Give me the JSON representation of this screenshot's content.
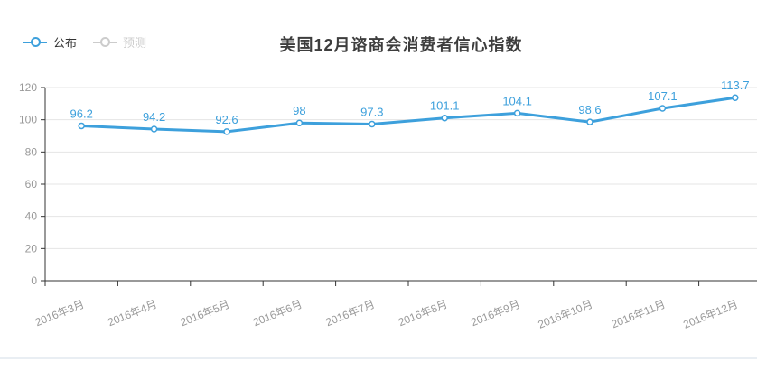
{
  "page": {
    "background": "#ffffff"
  },
  "legend": {
    "items": [
      {
        "label": "公布",
        "color": "#3da0dc",
        "label_color": "#333333",
        "active": true
      },
      {
        "label": "预测",
        "color": "#cccccc",
        "label_color": "#cccccc",
        "active": false
      }
    ]
  },
  "chart_data": {
    "type": "line",
    "title": "美国12月谘商会消费者信心指数",
    "categories": [
      "2016年3月",
      "2016年4月",
      "2016年5月",
      "2016年6月",
      "2016年7月",
      "2016年8月",
      "2016年9月",
      "2016年10月",
      "2016年11月",
      "2016年12月"
    ],
    "series": [
      {
        "name": "公布",
        "values": [
          96.2,
          94.2,
          92.6,
          98,
          97.3,
          101.1,
          104.1,
          98.6,
          107.1,
          113.7
        ],
        "color": "#3da0dc",
        "visible": true
      },
      {
        "name": "预测",
        "values": [],
        "color": "#cccccc",
        "visible": false
      }
    ],
    "xlabel": "",
    "ylabel": "",
    "ylim": [
      0,
      120
    ],
    "y_ticks": [
      0,
      20,
      40,
      60,
      80,
      100,
      120
    ],
    "grid": true,
    "legend_position": "top-left",
    "data_labels_shown": true
  },
  "colors": {
    "line": "#3da0dc",
    "axis": "#333333",
    "grid": "#e4e4e4",
    "tick_label": "#999999",
    "title": "#3d3d3d",
    "divider": "#e9eef3",
    "point_fill": "#ffffff"
  }
}
